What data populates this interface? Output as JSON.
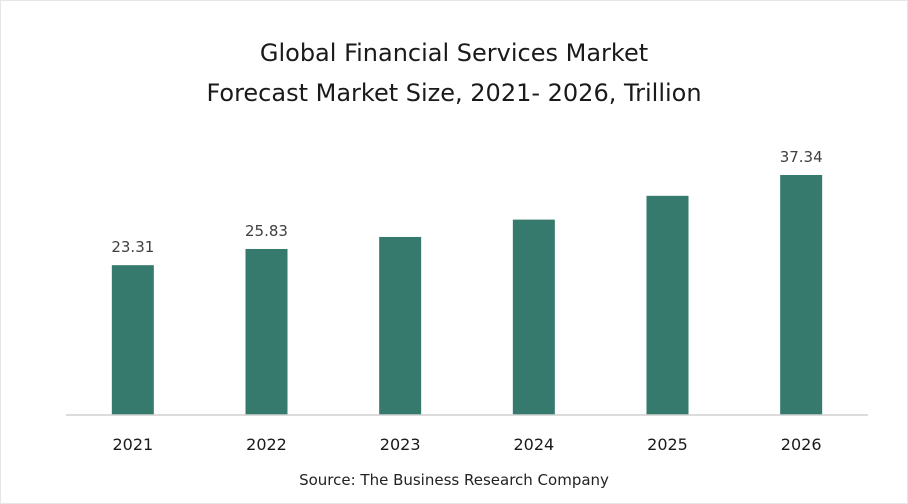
{
  "chart_data": {
    "type": "bar",
    "title": "Global Financial Services Market",
    "subtitle": "Forecast Market Size, 2021- 2026, Trillion",
    "categories": [
      "2021",
      "2022",
      "2023",
      "2024",
      "2025",
      "2026"
    ],
    "values": [
      23.31,
      25.83,
      27.7,
      30.4,
      34.1,
      37.34
    ],
    "data_labels": [
      "23.31",
      "25.83",
      "",
      "",
      "",
      "37.34"
    ],
    "ylim": [
      0,
      40
    ],
    "grid": false,
    "legend": "none",
    "colors": {
      "bar": "#367a6d",
      "axis": "#d0d0d0",
      "label": "#404040"
    }
  },
  "source": "Source: The Business Research Company"
}
